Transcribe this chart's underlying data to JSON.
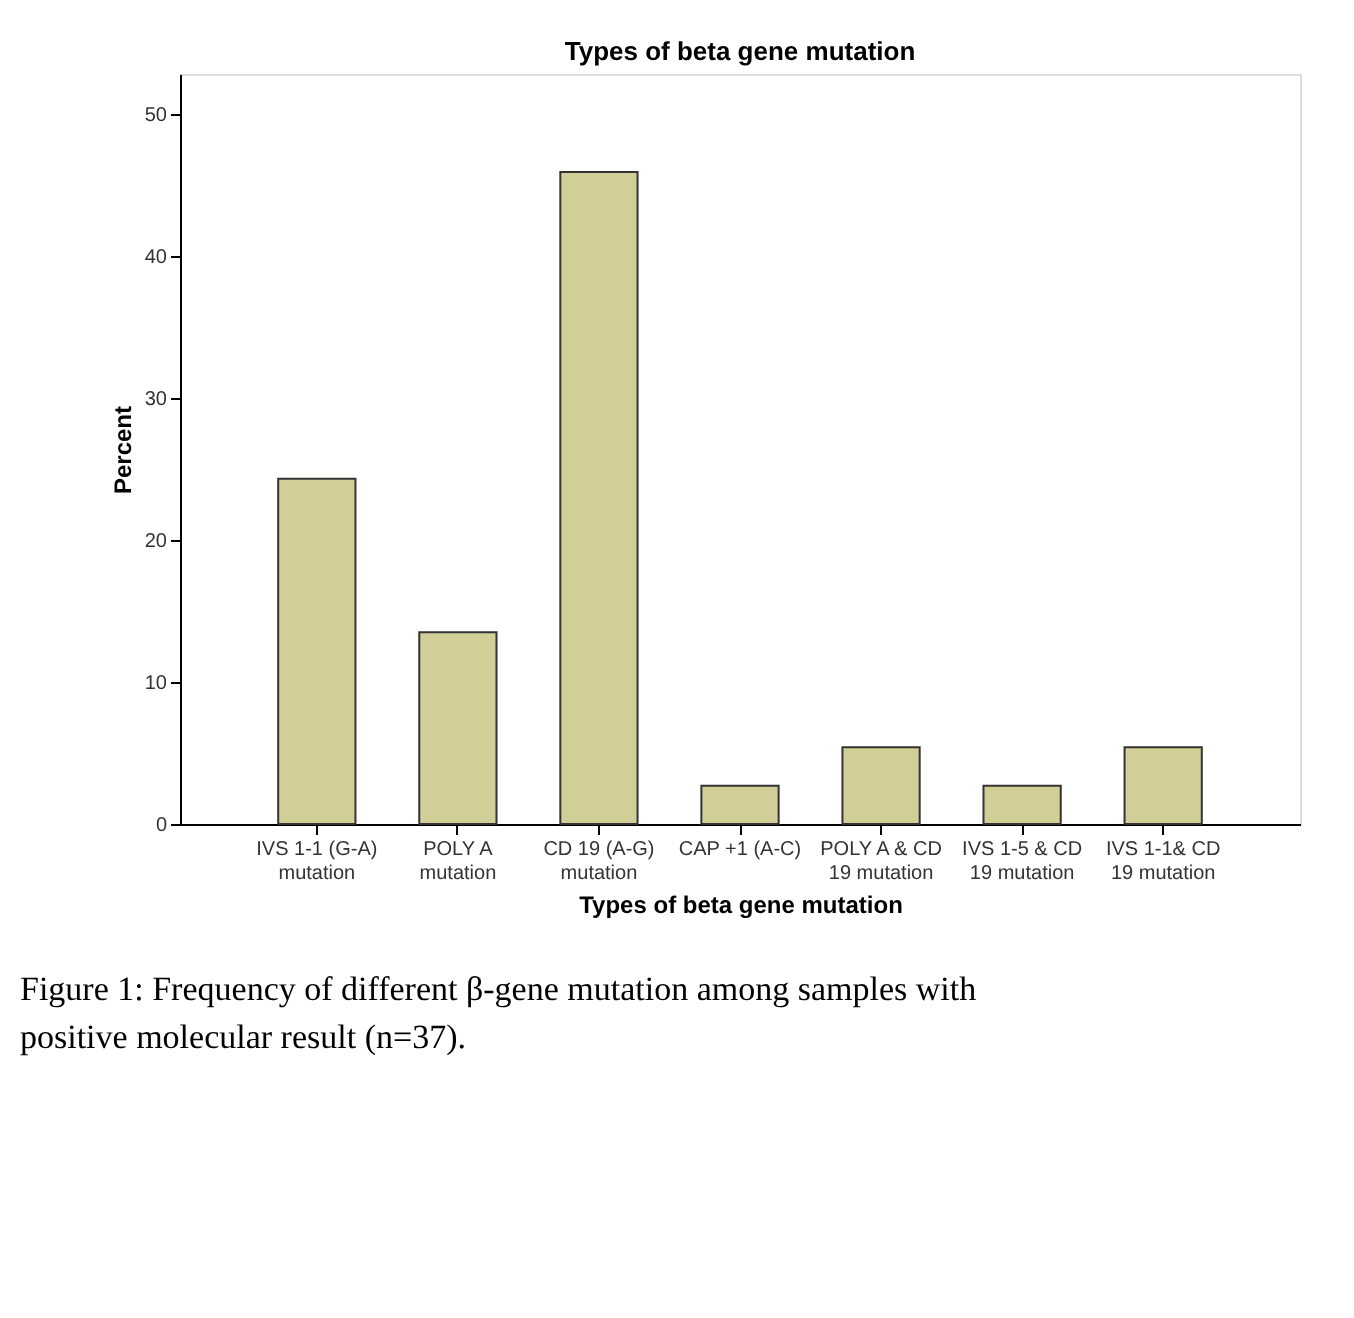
{
  "chart_data": {
    "type": "bar",
    "title": "Types of beta gene mutation",
    "xlabel": "Types of beta gene mutation",
    "ylabel": "Percent",
    "categories": [
      "IVS 1-1 (G-A) mutation",
      "POLY A mutation",
      "CD 19 (A-G) mutation",
      "CAP +1 (A-C)",
      "POLY A & CD 19 mutation",
      "IVS 1-5 & CD 19 mutation",
      "IVS 1-1& CD 19 mutation"
    ],
    "values": [
      24.3,
      13.5,
      45.9,
      2.7,
      5.4,
      2.7,
      5.4
    ],
    "color": "#d2ce98",
    "ylim": [
      0,
      52.8
    ],
    "yticks": [
      0,
      10,
      20,
      30,
      40,
      50
    ],
    "grid": false,
    "annotations": [
      "Figure 1: Frequency of different β-gene mutation among samples with positive molecular result (n=37)."
    ]
  }
}
